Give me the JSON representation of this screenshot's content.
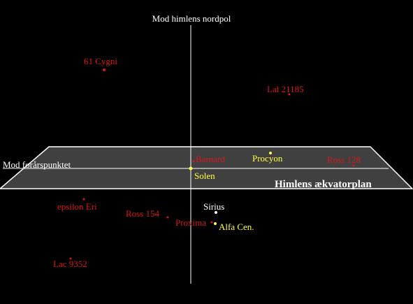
{
  "axes": {
    "north": "Mod himlens nordpol",
    "vernal": "Mod forårspunktet",
    "plane": "Himlens ækvatorplan"
  },
  "stars": [
    {
      "label": "61 Cygni"
    },
    {
      "label": "Lal 21185"
    },
    {
      "label": "Barnard"
    },
    {
      "label": "Procyon"
    },
    {
      "label": "Ross 128"
    },
    {
      "label": "Solen"
    },
    {
      "label": "epsilon Eri"
    },
    {
      "label": "Ross 154"
    },
    {
      "label": "Sirius"
    },
    {
      "label": "Proxima"
    },
    {
      "label": "Alfa Cen."
    },
    {
      "label": "Lac 9352"
    }
  ]
}
